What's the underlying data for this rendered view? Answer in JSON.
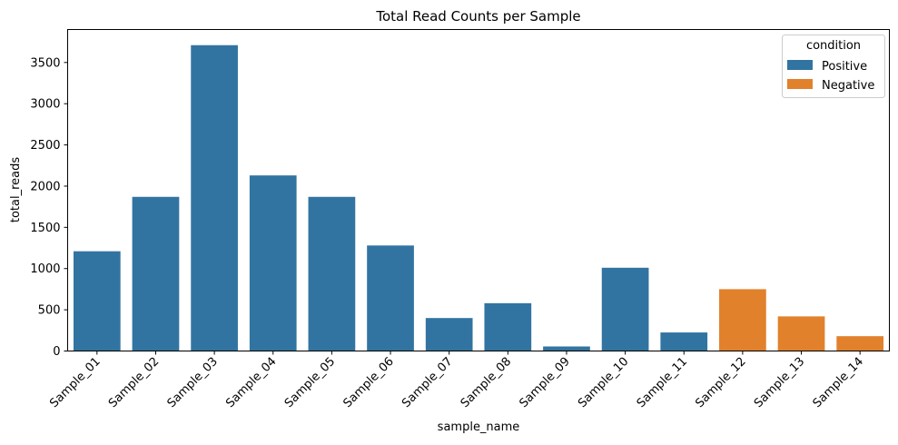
{
  "chart_data": {
    "type": "bar",
    "title": "Total Read Counts per Sample",
    "xlabel": "sample_name",
    "ylabel": "total_reads",
    "ylim": [
      0,
      3900
    ],
    "yticks": [
      0,
      500,
      1000,
      1500,
      2000,
      2500,
      3000,
      3500
    ],
    "grid": false,
    "legend": {
      "title": "condition",
      "position": "top-right",
      "entries": [
        {
          "name": "Positive",
          "color": "#3274a1"
        },
        {
          "name": "Negative",
          "color": "#e1812c"
        }
      ]
    },
    "categories": [
      "Sample_01",
      "Sample_02",
      "Sample_03",
      "Sample_04",
      "Sample_05",
      "Sample_06",
      "Sample_07",
      "Sample_08",
      "Sample_09",
      "Sample_10",
      "Sample_11",
      "Sample_12",
      "Sample_13",
      "Sample_14"
    ],
    "values": [
      1210,
      1870,
      3710,
      2130,
      1870,
      1280,
      400,
      580,
      55,
      1010,
      225,
      750,
      420,
      180
    ],
    "condition": [
      "Positive",
      "Positive",
      "Positive",
      "Positive",
      "Positive",
      "Positive",
      "Positive",
      "Positive",
      "Positive",
      "Positive",
      "Positive",
      "Negative",
      "Negative",
      "Negative"
    ]
  }
}
